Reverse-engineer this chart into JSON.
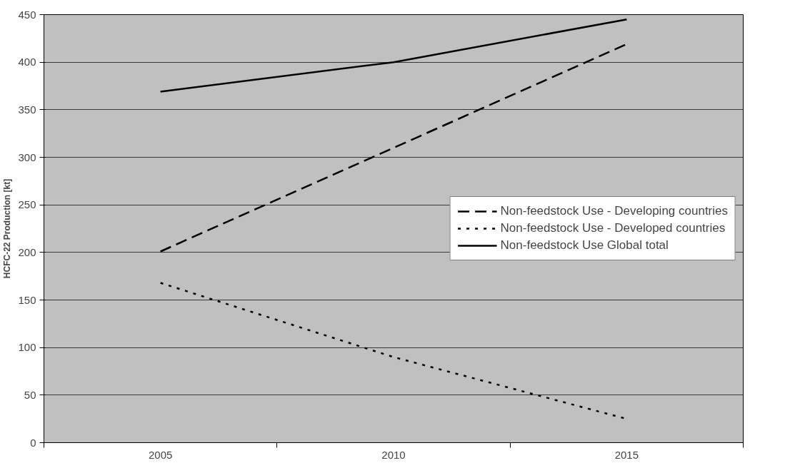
{
  "chart_data": {
    "type": "line",
    "ylabel": "HCFC-22 Production [kt]",
    "categories": [
      "2005",
      "2010",
      "2015"
    ],
    "series": [
      {
        "name": "Non-feedstock Use - Developing countries",
        "color": "#000000",
        "line_style": "dashed",
        "values": [
          201,
          310,
          419
        ]
      },
      {
        "name": "Non-feedstock Use - Developed countries",
        "color": "#000000",
        "line_style": "dotted",
        "values": [
          168,
          90,
          25
        ]
      },
      {
        "name": "Non-feedstock Use Global total",
        "color": "#000000",
        "line_style": "solid",
        "values": [
          369,
          400,
          445
        ]
      }
    ],
    "ylim": [
      0,
      450
    ],
    "yticks": [
      0,
      50,
      100,
      150,
      200,
      250,
      300,
      350,
      400,
      450
    ],
    "grid": "y",
    "legend": "right",
    "marker": "none"
  }
}
